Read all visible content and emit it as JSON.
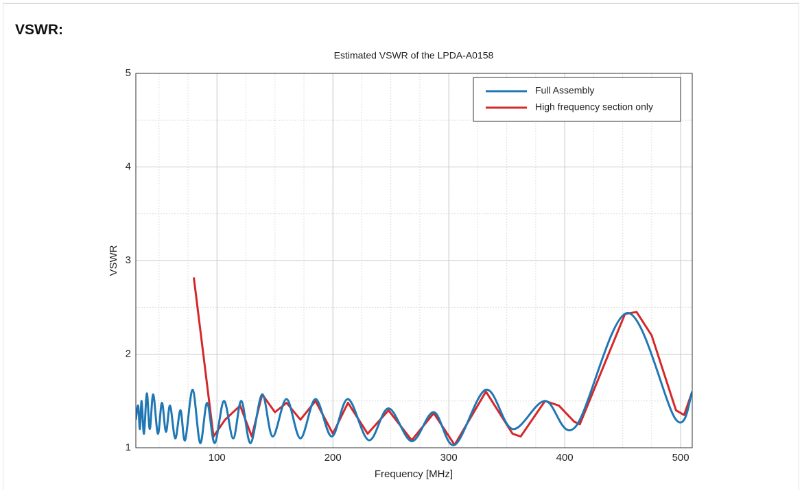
{
  "heading": "VSWR:",
  "chart_data": {
    "type": "line",
    "title": "Estimated VSWR of the LPDA-A0158",
    "x_label": "Frequency [MHz]",
    "y_label": "VSWR",
    "xlim": [
      30,
      510
    ],
    "ylim": [
      1,
      5
    ],
    "xticks": [
      100,
      200,
      300,
      400,
      500
    ],
    "yticks": [
      1,
      2,
      3,
      4,
      5
    ],
    "grid": true,
    "legend": "upper right",
    "series": [
      {
        "name": "Full Assembly",
        "color": "#1f77b4",
        "x": [
          30,
          32,
          33.5,
          35,
          37,
          39.5,
          42,
          45,
          49,
          52.5,
          56,
          59.5,
          64,
          68.5,
          72.5,
          79,
          85.5,
          91.5,
          98,
          106,
          114,
          121,
          129,
          139,
          148,
          160,
          172,
          185,
          199,
          213,
          231,
          248,
          268,
          287,
          305,
          332,
          355,
          383,
          409,
          454,
          496,
          510
        ],
        "values": [
          1.3,
          1.45,
          1.2,
          1.5,
          1.15,
          1.58,
          1.2,
          1.57,
          1.15,
          1.48,
          1.17,
          1.45,
          1.1,
          1.4,
          1.08,
          1.62,
          1.05,
          1.48,
          1.05,
          1.5,
          1.1,
          1.5,
          1.05,
          1.57,
          1.12,
          1.52,
          1.1,
          1.52,
          1.12,
          1.52,
          1.08,
          1.42,
          1.07,
          1.38,
          1.03,
          1.62,
          1.2,
          1.5,
          1.22,
          2.44,
          1.3,
          1.6
        ]
      },
      {
        "name": "High frequency section only",
        "color": "#d62728",
        "x": [
          80,
          97,
          107,
          120,
          130,
          139,
          150,
          160,
          172,
          185,
          200,
          213,
          230,
          248,
          268,
          287,
          305,
          332,
          355,
          362,
          383,
          395,
          408,
          413,
          452,
          462,
          475,
          496,
          503,
          510
        ],
        "values": [
          2.82,
          1.12,
          1.3,
          1.45,
          1.12,
          1.57,
          1.38,
          1.48,
          1.3,
          1.5,
          1.15,
          1.48,
          1.15,
          1.4,
          1.08,
          1.37,
          1.03,
          1.6,
          1.15,
          1.12,
          1.5,
          1.45,
          1.28,
          1.25,
          2.43,
          2.45,
          2.2,
          1.4,
          1.35,
          1.6
        ]
      }
    ]
  }
}
